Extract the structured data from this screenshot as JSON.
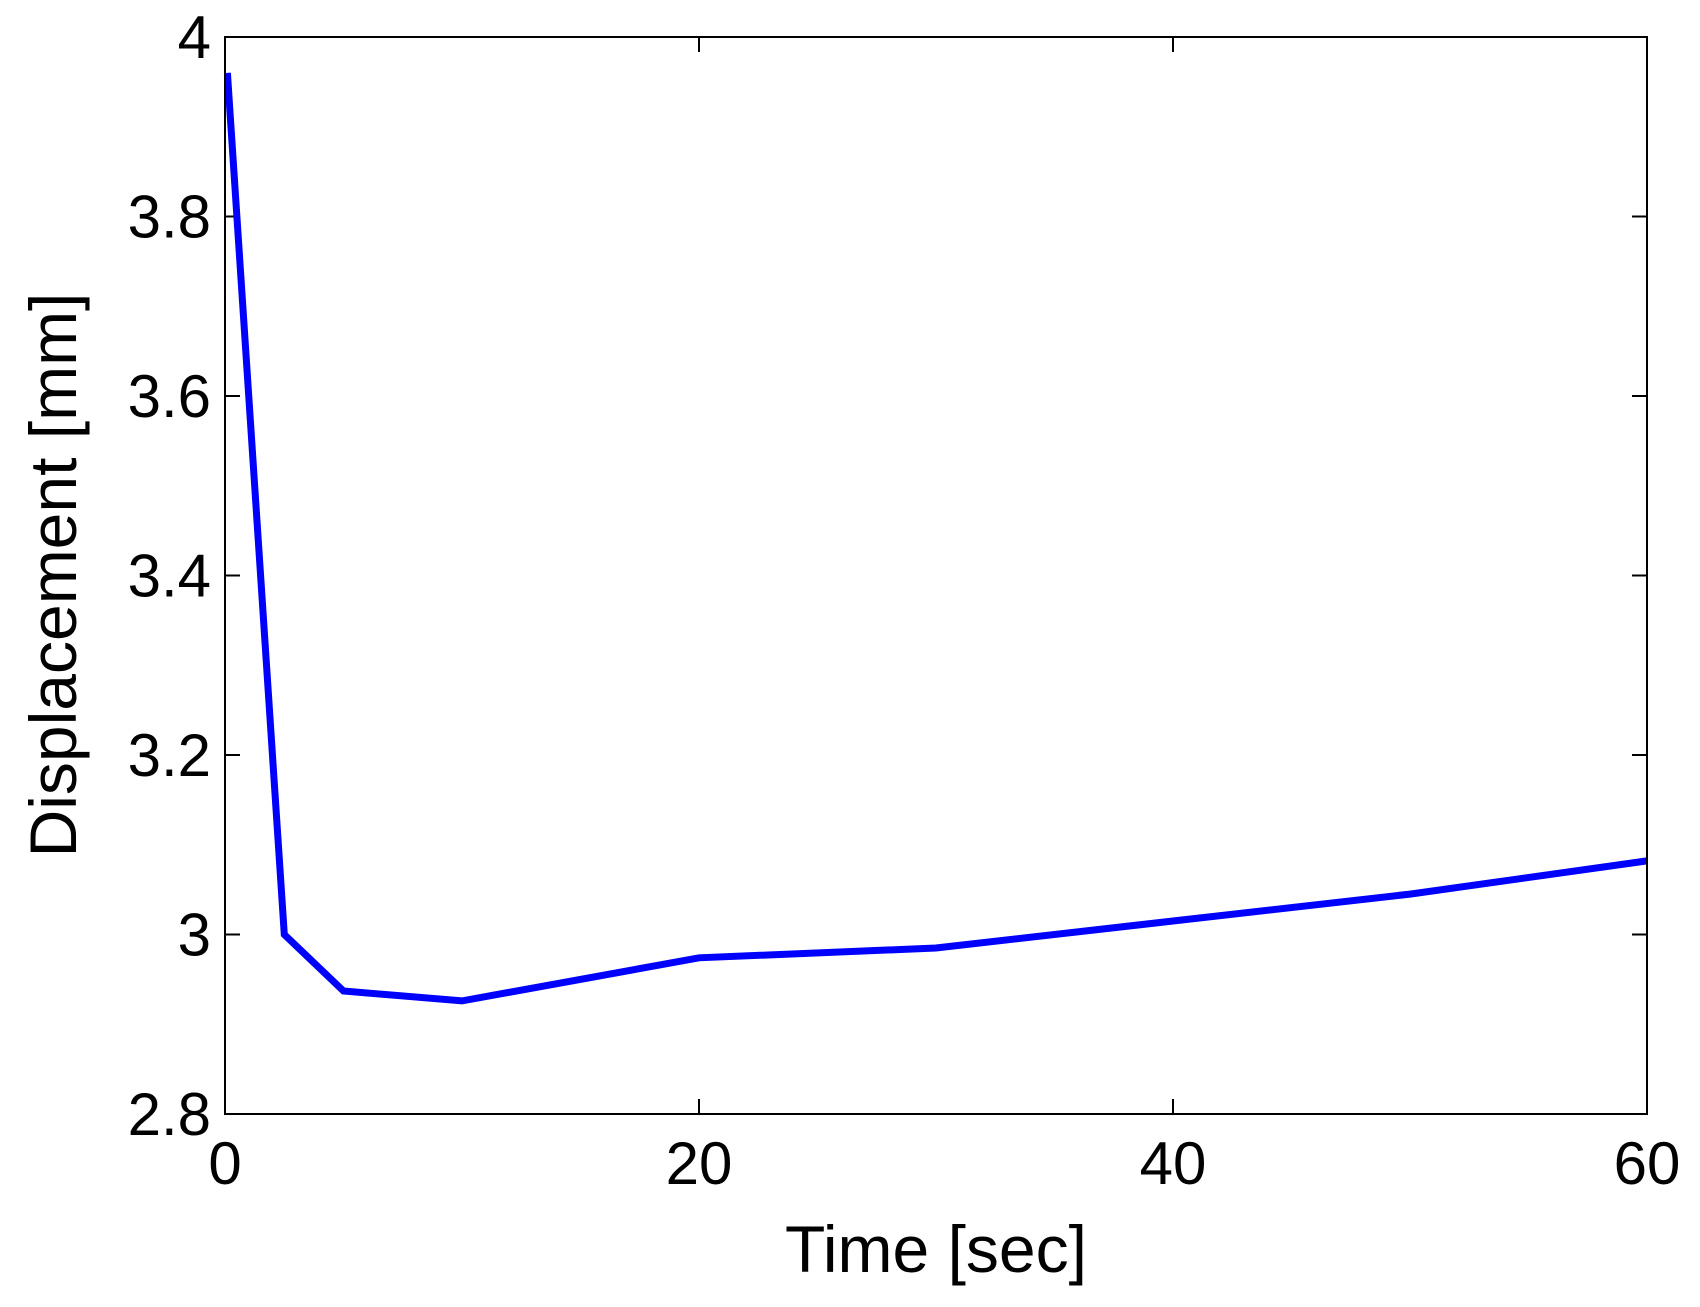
{
  "chart_data": {
    "type": "line",
    "title": "",
    "xlabel": "Time [sec]",
    "ylabel": "Displacement [mm]",
    "xlim": [
      0,
      60
    ],
    "ylim": [
      2.8,
      4.0
    ],
    "x_ticks": [
      0,
      20,
      40,
      60
    ],
    "y_ticks": [
      2.8,
      3.0,
      3.2,
      3.4,
      3.6,
      3.8,
      4.0
    ],
    "x_tick_labels": [
      "0",
      "20",
      "40",
      "60"
    ],
    "y_tick_labels": [
      "2.8",
      "3",
      "3.2",
      "3.4",
      "3.6",
      "3.8",
      "4"
    ],
    "grid": false,
    "legend": "none",
    "series": [
      {
        "color": "#0000ff",
        "x": [
          0.1,
          2.5,
          5,
          10,
          20,
          30,
          40,
          50,
          60
        ],
        "y": [
          3.96,
          3.0,
          2.937,
          2.926,
          2.974,
          2.985,
          3.015,
          3.045,
          3.082
        ]
      }
    ]
  }
}
